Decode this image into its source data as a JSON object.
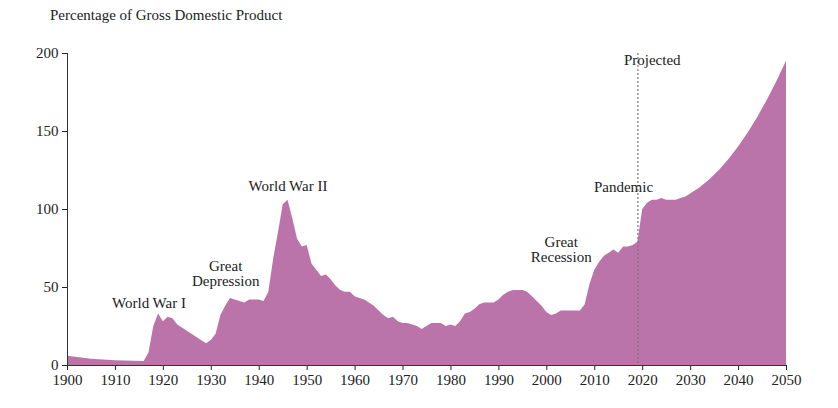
{
  "chart_data": {
    "type": "area",
    "y_label": "Percentage of Gross Domestic Product",
    "color": "#bb74a9",
    "x": [
      1900,
      1905,
      1910,
      1916,
      1917,
      1918,
      1919,
      1920,
      1921,
      1922,
      1923,
      1925,
      1927,
      1929,
      1930,
      1931,
      1932,
      1933,
      1934,
      1935,
      1936,
      1937,
      1938,
      1939,
      1940,
      1941,
      1942,
      1943,
      1944,
      1945,
      1946,
      1947,
      1948,
      1949,
      1950,
      1951,
      1952,
      1953,
      1954,
      1955,
      1956,
      1957,
      1958,
      1959,
      1960,
      1961,
      1962,
      1963,
      1964,
      1965,
      1966,
      1967,
      1968,
      1969,
      1970,
      1971,
      1972,
      1973,
      1974,
      1975,
      1976,
      1977,
      1978,
      1979,
      1980,
      1981,
      1982,
      1983,
      1984,
      1985,
      1986,
      1987,
      1988,
      1989,
      1990,
      1991,
      1992,
      1993,
      1994,
      1995,
      1996,
      1997,
      1998,
      1999,
      2000,
      2001,
      2002,
      2003,
      2004,
      2005,
      2006,
      2007,
      2008,
      2009,
      2010,
      2011,
      2012,
      2013,
      2014,
      2015,
      2016,
      2017,
      2018,
      2019,
      2020,
      2021,
      2022,
      2023,
      2024,
      2025,
      2026,
      2027,
      2028,
      2029,
      2030,
      2032,
      2034,
      2036,
      2038,
      2040,
      2042,
      2044,
      2046,
      2048,
      2050
    ],
    "values": [
      6,
      4,
      3,
      2.5,
      8,
      25,
      33,
      28,
      31,
      30,
      26,
      22,
      18,
      14,
      16,
      20,
      32,
      38,
      43,
      42,
      41,
      40,
      42,
      42,
      42,
      41,
      47,
      68,
      85,
      103,
      106,
      94,
      81,
      76,
      77,
      65,
      61,
      57,
      58,
      55,
      51,
      48,
      47,
      47,
      44,
      43,
      42,
      40,
      38,
      35,
      32,
      30,
      31,
      28,
      27,
      27,
      26,
      25,
      23,
      25,
      27,
      27,
      27,
      25,
      26,
      25,
      28,
      33,
      34,
      36,
      39,
      40,
      40,
      40,
      42,
      45,
      47,
      48,
      48,
      48,
      47,
      44,
      41,
      38,
      34,
      32,
      33,
      35,
      35,
      35,
      35,
      35,
      39,
      52,
      61,
      66,
      70,
      72,
      74,
      72,
      76,
      76,
      77,
      79,
      100,
      104,
      106,
      106,
      107,
      106,
      106,
      106,
      107,
      108,
      110,
      114,
      119,
      125,
      132,
      140,
      149,
      159,
      170,
      182,
      195
    ],
    "xlim": [
      1900,
      2050
    ],
    "xticks": [
      1900,
      1910,
      1920,
      1930,
      1940,
      1950,
      1960,
      1970,
      1980,
      1990,
      2000,
      2010,
      2020,
      2030,
      2040,
      2050
    ],
    "ylim": [
      0,
      200
    ],
    "yticks": [
      0,
      50,
      100,
      150,
      200
    ],
    "grid": false,
    "projected_from": 2019,
    "annotations": [
      {
        "text": "World War I",
        "x": 1917,
        "y": 40
      },
      {
        "text": "Great\nDepression",
        "x": 1933,
        "y": 59
      },
      {
        "text": "World War II",
        "x": 1946,
        "y": 115
      },
      {
        "text": "Great\nRecession",
        "x": 2003,
        "y": 74
      },
      {
        "text": "Pandemic",
        "x": 2016,
        "y": 114
      },
      {
        "text": "Projected",
        "x": 2022,
        "y": 196
      }
    ]
  }
}
